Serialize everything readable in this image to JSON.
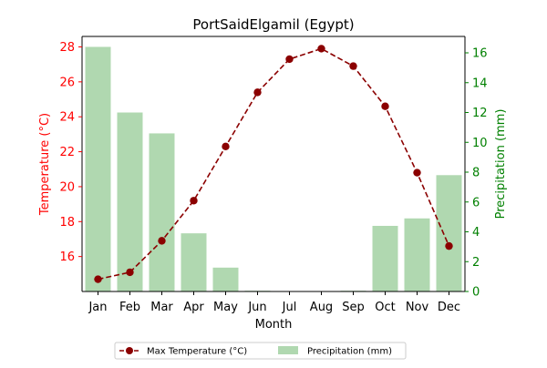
{
  "chart_data": {
    "type": "bar+line",
    "title": "PortSaidElgamil (Egypt)",
    "xlabel": "Month",
    "categories": [
      "Jan",
      "Feb",
      "Mar",
      "Apr",
      "May",
      "Jun",
      "Jul",
      "Aug",
      "Sep",
      "Oct",
      "Nov",
      "Dec"
    ],
    "left_axis": {
      "label": "Temperature (°C)",
      "color": "#ff0000",
      "ylim": [
        14.0,
        28.6
      ],
      "ticks": [
        16,
        18,
        20,
        22,
        24,
        26,
        28
      ]
    },
    "right_axis": {
      "label": "Precipitation (mm)",
      "color": "#008000",
      "ylim": [
        0,
        17.1
      ],
      "ticks": [
        0,
        2,
        4,
        6,
        8,
        10,
        12,
        14,
        16
      ]
    },
    "series": [
      {
        "name": "Max Temperature (°C)",
        "type": "line",
        "axis": "left",
        "color": "#8b0000",
        "values": [
          14.7,
          15.1,
          16.9,
          19.2,
          22.3,
          25.4,
          27.3,
          27.9,
          26.9,
          24.6,
          20.8,
          16.6
        ]
      },
      {
        "name": "Precipitation (mm)",
        "type": "bar",
        "axis": "right",
        "color": "#b0d8b0",
        "values": [
          16.4,
          12.0,
          10.6,
          3.9,
          1.6,
          0.05,
          0.0,
          0.0,
          0.05,
          4.4,
          4.9,
          7.8
        ]
      }
    ],
    "legend": {
      "position": "bottom-center"
    },
    "grid": false
  }
}
